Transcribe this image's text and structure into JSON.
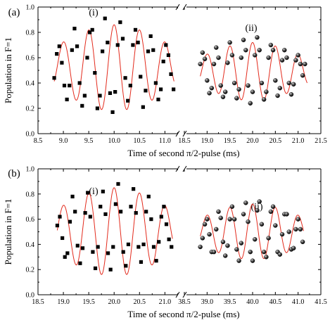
{
  "chart_data": [
    {
      "type": "scatter",
      "panel_label": "(a)",
      "ylabel": "Population in F=1",
      "xlabel": "Time of second π/2-pulse (ms)",
      "ylim": [
        0.0,
        1.0
      ],
      "yticks": [
        "0.0",
        "0.2",
        "0.4",
        "0.6",
        "0.8",
        "1.0"
      ],
      "broken_x_axis": true,
      "segments": [
        {
          "sub_label": "(i)",
          "xlim": [
            8.5,
            11.3
          ],
          "xticks": [
            "8.5",
            "9.0",
            "9.5",
            "10.0",
            "10.5",
            "11.0"
          ],
          "marker": "square",
          "fit": {
            "center": 10.0,
            "frequency_khz": 2.0,
            "mean": 0.52,
            "amplitude": 0.34,
            "envelope_width": 1.4,
            "x_range": [
              8.82,
              11.18
            ]
          },
          "points": {
            "x": [
              8.82,
              8.87,
              8.92,
              8.97,
              9.02,
              9.07,
              9.12,
              9.17,
              9.22,
              9.27,
              9.32,
              9.37,
              9.42,
              9.47,
              9.52,
              9.57,
              9.62,
              9.67,
              9.72,
              9.77,
              9.82,
              9.87,
              9.92,
              9.97,
              10.02,
              10.07,
              10.12,
              10.17,
              10.22,
              10.27,
              10.32,
              10.37,
              10.42,
              10.47,
              10.52,
              10.57,
              10.62,
              10.67,
              10.72,
              10.77,
              10.82,
              10.87,
              10.92,
              10.97,
              11.02,
              11.07,
              11.12,
              11.17
            ],
            "y": [
              0.44,
              0.63,
              0.69,
              0.56,
              0.38,
              0.27,
              0.38,
              0.66,
              0.83,
              0.69,
              0.4,
              0.22,
              0.3,
              0.6,
              0.8,
              0.82,
              0.48,
              0.2,
              0.3,
              0.65,
              0.91,
              0.72,
              0.32,
              0.17,
              0.33,
              0.7,
              0.88,
              0.75,
              0.44,
              0.26,
              0.38,
              0.7,
              0.82,
              0.72,
              0.45,
              0.21,
              0.34,
              0.65,
              0.77,
              0.66,
              0.4,
              0.27,
              0.35,
              0.57,
              0.7,
              0.62,
              0.47,
              0.35
            ]
          }
        },
        {
          "sub_label": "(ii)",
          "xlim": [
            18.5,
            21.5
          ],
          "xticks": [
            "18.5",
            "19.0",
            "19.5",
            "20.0",
            "20.5",
            "21.0",
            "21.5"
          ],
          "marker": "sphere",
          "fit": {
            "center": 20.0,
            "frequency_khz": 2.0,
            "mean": 0.49,
            "amplitude": 0.23,
            "envelope_width": 1.4,
            "x_range": [
              18.85,
              21.2
            ]
          },
          "points": {
            "x": [
              18.85,
              18.9,
              18.95,
              19.0,
              19.05,
              19.1,
              19.15,
              19.2,
              19.25,
              19.3,
              19.35,
              19.4,
              19.45,
              19.5,
              19.55,
              19.6,
              19.65,
              19.7,
              19.75,
              19.8,
              19.85,
              19.9,
              19.95,
              20.0,
              20.05,
              20.1,
              20.15,
              20.2,
              20.25,
              20.3,
              20.35,
              20.4,
              20.45,
              20.5,
              20.55,
              20.6,
              20.65,
              20.7,
              20.75,
              20.8,
              20.85,
              20.9,
              20.95,
              21.0,
              21.05,
              21.1,
              21.15
            ],
            "y": [
              0.55,
              0.64,
              0.59,
              0.42,
              0.32,
              0.36,
              0.55,
              0.68,
              0.6,
              0.38,
              0.29,
              0.33,
              0.56,
              0.72,
              0.62,
              0.4,
              0.28,
              0.35,
              0.6,
              0.74,
              0.66,
              0.38,
              0.24,
              0.33,
              0.62,
              0.76,
              0.66,
              0.4,
              0.27,
              0.33,
              0.6,
              0.7,
              0.66,
              0.42,
              0.3,
              0.36,
              0.58,
              0.66,
              0.6,
              0.4,
              0.31,
              0.39,
              0.58,
              0.62,
              0.55,
              0.46,
              0.55
            ]
          }
        }
      ]
    },
    {
      "type": "scatter",
      "panel_label": "(b)",
      "ylabel": "Population in F=1",
      "xlabel": "Time of second π/2-pulse (ms)",
      "ylim": [
        0.0,
        1.0
      ],
      "yticks": [
        "0.0",
        "0.2",
        "0.4",
        "0.6",
        "0.8",
        "1.0"
      ],
      "broken_x_axis": true,
      "segments": [
        {
          "sub_label": "(i)",
          "xlim": [
            18.5,
            21.3
          ],
          "xticks": [
            "18.5",
            "19.0",
            "19.5",
            "20.0",
            "20.5",
            "21.0"
          ],
          "marker": "square",
          "fit": {
            "center": 20.0,
            "frequency_khz": 2.0,
            "mean": 0.5,
            "amplitude": 0.35,
            "envelope_width": 1.4,
            "x_range": [
              18.88,
              21.15
            ]
          },
          "points": {
            "x": [
              18.88,
              18.93,
              18.98,
              19.03,
              19.08,
              19.13,
              19.18,
              19.23,
              19.28,
              19.33,
              19.38,
              19.43,
              19.48,
              19.53,
              19.58,
              19.63,
              19.68,
              19.73,
              19.78,
              19.83,
              19.88,
              19.93,
              19.98,
              20.03,
              20.08,
              20.13,
              20.18,
              20.23,
              20.28,
              20.33,
              20.38,
              20.43,
              20.48,
              20.53,
              20.58,
              20.63,
              20.68,
              20.73,
              20.78,
              20.83,
              20.88,
              20.93,
              20.98,
              21.03,
              21.08,
              21.13
            ],
            "y": [
              0.55,
              0.62,
              0.45,
              0.3,
              0.33,
              0.58,
              0.78,
              0.66,
              0.39,
              0.25,
              0.37,
              0.65,
              0.81,
              0.62,
              0.34,
              0.21,
              0.38,
              0.7,
              0.82,
              0.64,
              0.33,
              0.2,
              0.38,
              0.72,
              0.88,
              0.66,
              0.34,
              0.23,
              0.4,
              0.7,
              0.84,
              0.65,
              0.38,
              0.26,
              0.4,
              0.66,
              0.78,
              0.6,
              0.38,
              0.27,
              0.42,
              0.62,
              0.7,
              0.56,
              0.44,
              0.38
            ]
          }
        },
        {
          "sub_label": "(ii)",
          "xlim": [
            38.5,
            41.5
          ],
          "xticks": [
            "38.5",
            "39.0",
            "39.5",
            "40.0",
            "40.5",
            "41.0",
            "41.5"
          ],
          "marker": "sphere",
          "fit": {
            "center": 40.0,
            "frequency_khz": 2.0,
            "mean": 0.5,
            "amplitude": 0.22,
            "envelope_width": 1.4,
            "x_range": [
              38.85,
              41.12
            ]
          },
          "points": {
            "x": [
              38.85,
              38.9,
              38.95,
              39.0,
              39.05,
              39.1,
              39.15,
              39.2,
              39.25,
              39.3,
              39.35,
              39.4,
              39.45,
              39.5,
              39.55,
              39.6,
              39.65,
              39.7,
              39.75,
              39.8,
              39.85,
              39.9,
              39.95,
              40.0,
              40.05,
              40.1,
              40.15,
              40.2,
              40.25,
              40.3,
              40.35,
              40.4,
              40.45,
              40.5,
              40.55,
              40.6,
              40.65,
              40.7,
              40.75,
              40.8,
              40.85,
              40.9,
              40.95,
              41.0,
              41.05,
              41.1
            ],
            "y": [
              0.38,
              0.45,
              0.56,
              0.6,
              0.48,
              0.34,
              0.34,
              0.52,
              0.66,
              0.61,
              0.42,
              0.31,
              0.39,
              0.6,
              0.7,
              0.6,
              0.36,
              0.27,
              0.41,
              0.64,
              0.73,
              0.58,
              0.34,
              0.27,
              0.44,
              0.67,
              0.74,
              0.56,
              0.34,
              0.3,
              0.45,
              0.66,
              0.7,
              0.55,
              0.34,
              0.32,
              0.48,
              0.64,
              0.64,
              0.5,
              0.36,
              0.37,
              0.52,
              0.6,
              0.52,
              0.42
            ]
          }
        }
      ]
    }
  ]
}
